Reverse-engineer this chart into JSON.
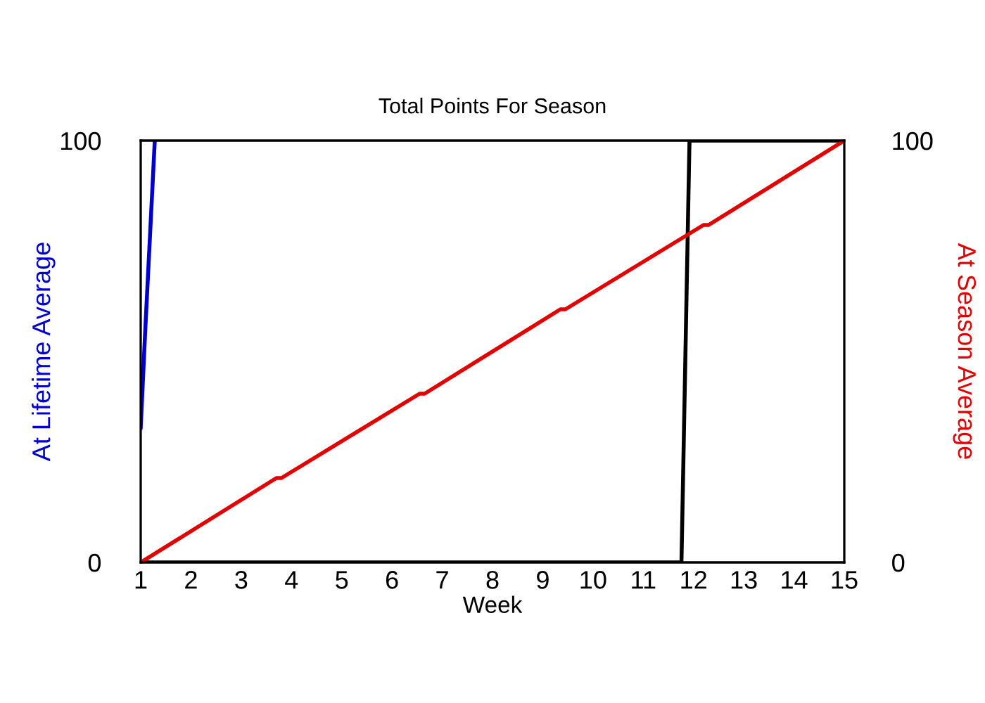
{
  "chart_data": {
    "type": "line",
    "title": "Total Points For Season",
    "xlabel": "Week",
    "ylabel": "At Lifetime Average",
    "y2label": "At Season Average",
    "xlim": [
      1,
      15
    ],
    "xticks": [
      1,
      2,
      3,
      4,
      5,
      6,
      7,
      8,
      9,
      10,
      11,
      12,
      13,
      14,
      15
    ],
    "ylim": [
      0,
      100
    ],
    "yticks": [
      0,
      100
    ],
    "y2lim": [
      0,
      100
    ],
    "y2ticks": [
      0,
      100
    ],
    "line_style": "solid",
    "series": [
      {
        "color": "#0000cc",
        "x": [
          1,
          1.09,
          1.28
        ],
        "values": [
          32,
          55,
          100
        ]
      },
      {
        "color": "#000000",
        "x": [
          1,
          11.76,
          11.92,
          15
        ],
        "values": [
          0,
          0,
          100,
          100
        ]
      },
      {
        "color": "#e00000",
        "axis": "y2",
        "x": [
          1,
          3.7,
          3.8,
          6.55,
          6.65,
          9.35,
          9.45,
          12.2,
          12.3,
          15
        ],
        "values": [
          0,
          20,
          20,
          40,
          40,
          60,
          60,
          80,
          80,
          100
        ]
      }
    ]
  }
}
